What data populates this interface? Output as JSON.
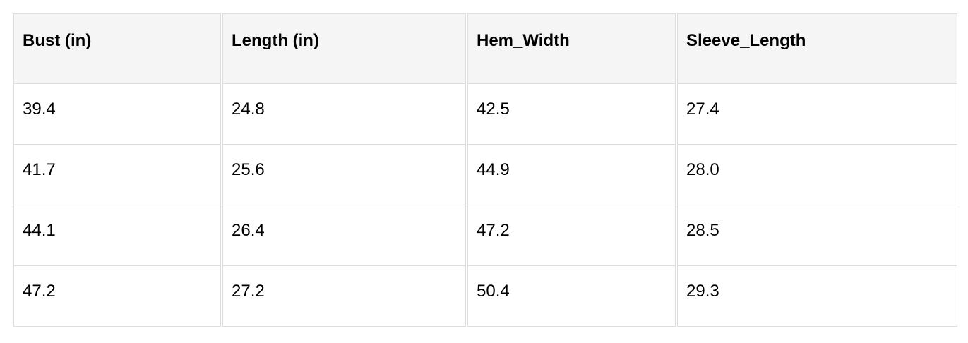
{
  "table": {
    "headers": [
      "Bust (in)",
      "Length (in)",
      "Hem_Width",
      "Sleeve_Length"
    ],
    "rows": [
      [
        "39.4",
        "24.8",
        "42.5",
        "27.4"
      ],
      [
        "41.7",
        "25.6",
        "44.9",
        "28.0"
      ],
      [
        "44.1",
        "26.4",
        "47.2",
        "28.5"
      ],
      [
        "47.2",
        "27.2",
        "50.4",
        "29.3"
      ]
    ]
  }
}
